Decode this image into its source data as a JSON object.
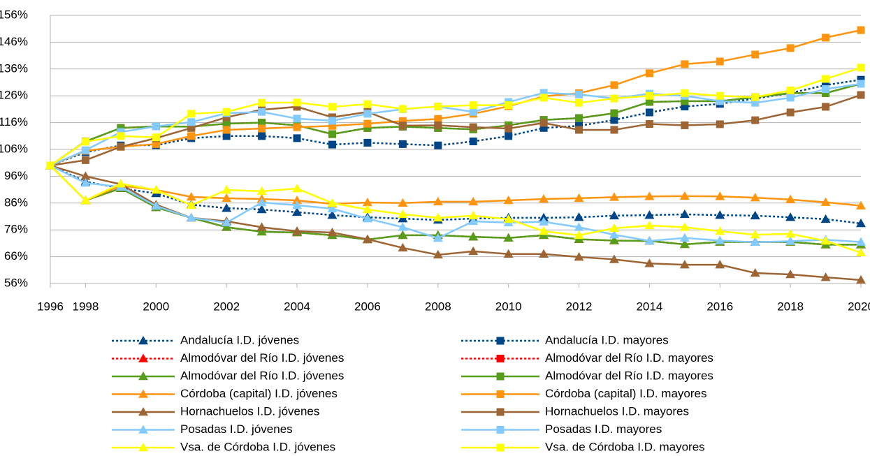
{
  "chart_data": {
    "type": "line",
    "categories": [
      "1996",
      "1998",
      null,
      "2000",
      null,
      "2002",
      null,
      "2004",
      null,
      "2006",
      null,
      "2008",
      null,
      "2010",
      null,
      "2012",
      null,
      "2014",
      null,
      "2016",
      null,
      "2018",
      null,
      "2020"
    ],
    "ylim": [
      56,
      156
    ],
    "yticks": [
      {
        "value": 56,
        "label": "56%"
      },
      {
        "value": 66,
        "label": "66%"
      },
      {
        "value": 76,
        "label": "76%"
      },
      {
        "value": 86,
        "label": "86%"
      },
      {
        "value": 96,
        "label": "96%"
      },
      {
        "value": 106,
        "label": "106%"
      },
      {
        "value": 116,
        "label": "116%"
      },
      {
        "value": 126,
        "label": "126%"
      },
      {
        "value": 136,
        "label": "136%"
      },
      {
        "value": 146,
        "label": "146%"
      },
      {
        "value": 156,
        "label": "156%"
      }
    ],
    "grid": true,
    "series": [
      {
        "name": "Andalucía I.D. jóvenes",
        "color": "#004586",
        "dash": "dotted",
        "marker": "triangle",
        "values": [
          100,
          94,
          91.5,
          89.6,
          85.4,
          84.1,
          83.6,
          82.6,
          81.5,
          80.7,
          80.2,
          79.7,
          80.2,
          80.5,
          80.5,
          80.7,
          81.3,
          81.5,
          81.8,
          81.5,
          81.3,
          80.7,
          80,
          78.4
        ]
      },
      {
        "name": "Andalucía I.D. mayores",
        "color": "#004586",
        "dash": "dotted",
        "marker": "square",
        "values": [
          100,
          105,
          107.5,
          107.6,
          110.2,
          111,
          111,
          110.2,
          107.8,
          108.5,
          108,
          107.5,
          109,
          111,
          114,
          114.8,
          117,
          119.8,
          122,
          123,
          125,
          127,
          130,
          132
        ]
      },
      {
        "name": "Almodóvar del Río I.D. jóvenes",
        "color": "#ff0000",
        "dash": "dotted",
        "marker": "triangle",
        "values": [
          100,
          87,
          91.5,
          84.4,
          80.5,
          77,
          75.3,
          75,
          74,
          72.4,
          74,
          74,
          73.4,
          73,
          74,
          72.5,
          72,
          71.9,
          70.6,
          71.5,
          71.5,
          71.5,
          70.5,
          70.5
        ]
      },
      {
        "name": "Almodóvar del Río I.D. mayores",
        "color": "#ff0000",
        "dash": "dotted",
        "marker": "square",
        "values": [
          100,
          109,
          114,
          114.6,
          114.5,
          115.6,
          116,
          115,
          111.7,
          114,
          114.5,
          114,
          113.5,
          115,
          117,
          117.7,
          119.5,
          123.7,
          124,
          124,
          125.5,
          127,
          127,
          130.5
        ]
      },
      {
        "name": "Almodóvar del Río I.D. jóvenes",
        "color": "#579d1c",
        "marker": "triangle",
        "values": [
          100,
          87,
          91.5,
          84.4,
          80.5,
          77,
          75.3,
          75,
          74,
          72.4,
          74,
          74,
          73.4,
          73,
          74,
          72.5,
          72,
          71.9,
          70.6,
          71.5,
          71.5,
          71.5,
          70.5,
          70.5
        ]
      },
      {
        "name": "Almodóvar del Río I.D. mayores",
        "color": "#579d1c",
        "marker": "square",
        "values": [
          100,
          109,
          114,
          114.6,
          114.5,
          115.6,
          116,
          115,
          111.7,
          114,
          114.5,
          114,
          113.5,
          115,
          117,
          117.7,
          119.5,
          123.7,
          124,
          124,
          125.5,
          127,
          127,
          130.5
        ]
      },
      {
        "name": "Córdoba (capital) I.D. jóvenes",
        "color": "#ff950e",
        "marker": "triangle",
        "values": [
          100,
          87,
          92.5,
          90.9,
          88.3,
          87.8,
          87.5,
          87,
          85.7,
          86.2,
          86,
          86.5,
          86.5,
          87,
          87.5,
          87.8,
          88.2,
          88.5,
          88.6,
          88.5,
          88,
          87.3,
          86.3,
          85
        ]
      },
      {
        "name": "Córdoba (capital) I.D. mayores",
        "color": "#ff950e",
        "marker": "square",
        "values": [
          100,
          105.5,
          107,
          108,
          111,
          113.3,
          113.8,
          114.3,
          114.8,
          115.6,
          116.6,
          117.4,
          119.3,
          122.1,
          125.8,
          127,
          130,
          134.4,
          137.8,
          138.8,
          141.4,
          143.8,
          147.7,
          150.5
        ]
      },
      {
        "name": "Hornachuelos I.D. jóvenes",
        "color": "#9e6534",
        "marker": "triangle",
        "values": [
          100,
          96,
          93,
          85.4,
          80.5,
          79.2,
          77,
          75.5,
          75,
          72.5,
          69.3,
          66.7,
          68,
          67,
          67,
          65.9,
          65,
          63.5,
          63,
          63,
          59.9,
          59.4,
          58.3,
          57.3
        ]
      },
      {
        "name": "Hornachuelos I.D. mayores",
        "color": "#9e6534",
        "marker": "square",
        "values": [
          100,
          102,
          107,
          110.2,
          114,
          118,
          120.8,
          121.9,
          118,
          120,
          114.9,
          115,
          114.3,
          113.8,
          115.9,
          113.3,
          113.3,
          115.5,
          115,
          115.4,
          116.9,
          119.8,
          121.9,
          126.3
        ]
      },
      {
        "name": "Posadas I.D. jóvenes",
        "color": "#83caff",
        "marker": "triangle",
        "values": [
          100,
          93.5,
          92,
          84.9,
          80.5,
          78.7,
          86.2,
          85.2,
          83.9,
          80.2,
          77,
          72.9,
          79.2,
          78.7,
          79,
          77,
          74.2,
          71.9,
          73,
          72,
          71.4,
          71.8,
          72.3,
          71.5
        ]
      },
      {
        "name": "Posadas I.D. mayores",
        "color": "#83caff",
        "marker": "square",
        "values": [
          100,
          105.7,
          112.5,
          114.6,
          116.2,
          119.5,
          120,
          117.5,
          116.7,
          119.3,
          121,
          122,
          120,
          123.7,
          127.1,
          126.5,
          125,
          126.8,
          126,
          124,
          123.4,
          125.3,
          128.5,
          130.5
        ]
      },
      {
        "name": "Vsa. de Córdoba I.D. jóvenes",
        "color": "#ffff00",
        "marker": "triangle",
        "values": [
          100,
          87,
          93.2,
          90.9,
          85.2,
          90.9,
          90.4,
          91.4,
          86,
          83.6,
          81.8,
          80.5,
          81.3,
          80,
          75.5,
          74,
          76.6,
          77.6,
          77,
          75.5,
          74.2,
          74.5,
          71.9,
          67.5
        ]
      },
      {
        "name": "Vsa. de Córdoba I.D. mayores",
        "color": "#ffff00",
        "marker": "square",
        "values": [
          100,
          108.9,
          111,
          110.5,
          119.3,
          120,
          123.4,
          123.5,
          121.9,
          122.9,
          121.1,
          122,
          122.5,
          122.5,
          125.3,
          123.4,
          125,
          126,
          127,
          126,
          125.5,
          128,
          132.3,
          136.5
        ]
      }
    ]
  }
}
